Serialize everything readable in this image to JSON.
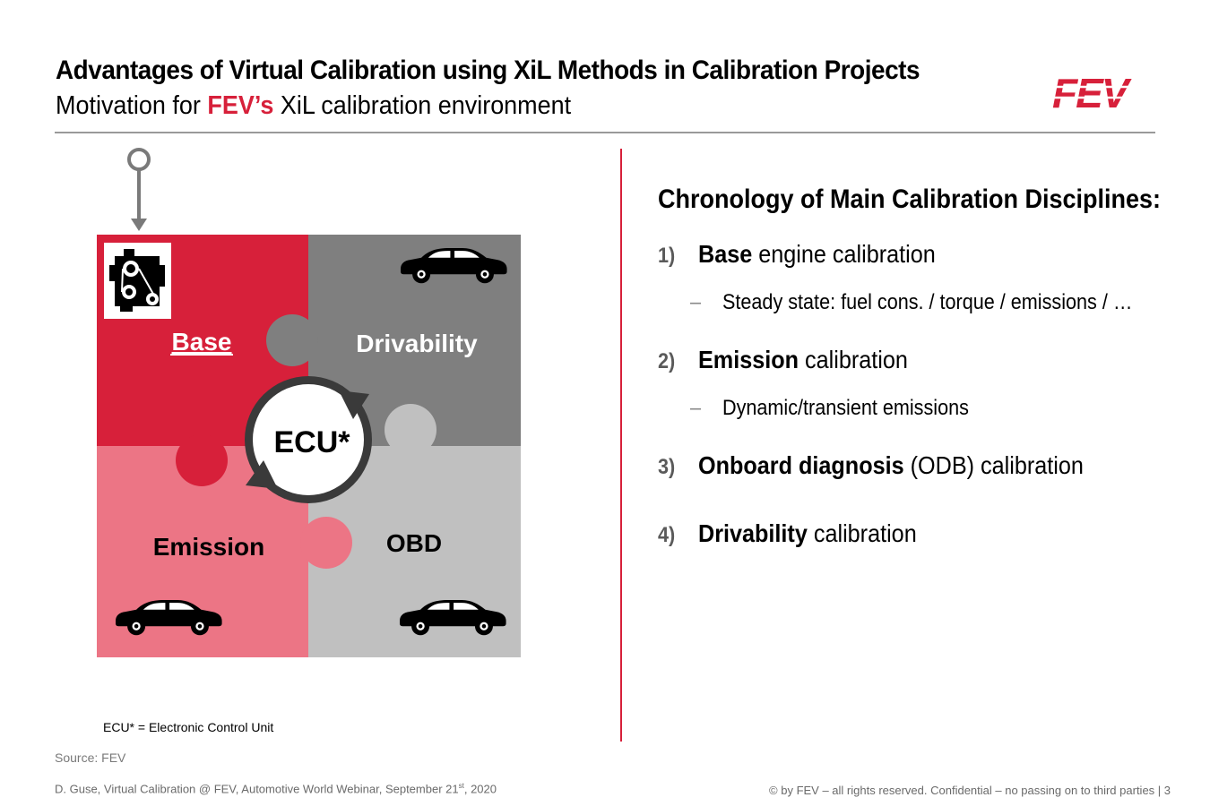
{
  "header": {
    "title": "Advantages of Virtual Calibration using XiL Methods in Calibration Projects",
    "subtitle_prefix": "Motivation for ",
    "subtitle_highlight": "FEV’s",
    "subtitle_suffix": " XiL calibration environment",
    "logo_text": "FEV"
  },
  "colors": {
    "accent": "#d7203a",
    "tile_drivability": "#7f7f7f",
    "tile_emission": "#ec7585",
    "tile_obd": "#c0c0c0"
  },
  "puzzle": {
    "base_label": "Base",
    "drivability_label": "Drivability",
    "emission_label": "Emission",
    "obd_label": "OBD",
    "center_label": "ECU*",
    "icons": [
      "pin-icon",
      "engine-icon",
      "car-icon",
      "cycle-arrows-icon"
    ]
  },
  "chronology": {
    "title": "Chronology of Main Calibration Disciplines:",
    "items": [
      {
        "num": "1)",
        "bold": "Base",
        "rest": " engine calibration",
        "sub": "Steady state: fuel cons. / torque / emissions / …"
      },
      {
        "num": "2)",
        "bold": "Emission",
        "rest": " calibration",
        "sub": "Dynamic/transient emissions"
      },
      {
        "num": "3)",
        "bold": "Onboard diagnosis",
        "rest": " (ODB) calibration",
        "sub": ""
      },
      {
        "num": "4)",
        "bold": "Drivability",
        "rest": " calibration",
        "sub": ""
      }
    ],
    "dash": "–"
  },
  "footnote": "ECU* = Electronic Control Unit",
  "source": "Source: FEV",
  "footer": {
    "left_main": "D. Guse, Virtual Calibration @ FEV, Automotive World Webinar, September 21",
    "left_sup": "st",
    "left_end": ", 2020",
    "right": "© by FEV – all rights reserved. Confidential – no passing on to third parties  |  3"
  }
}
